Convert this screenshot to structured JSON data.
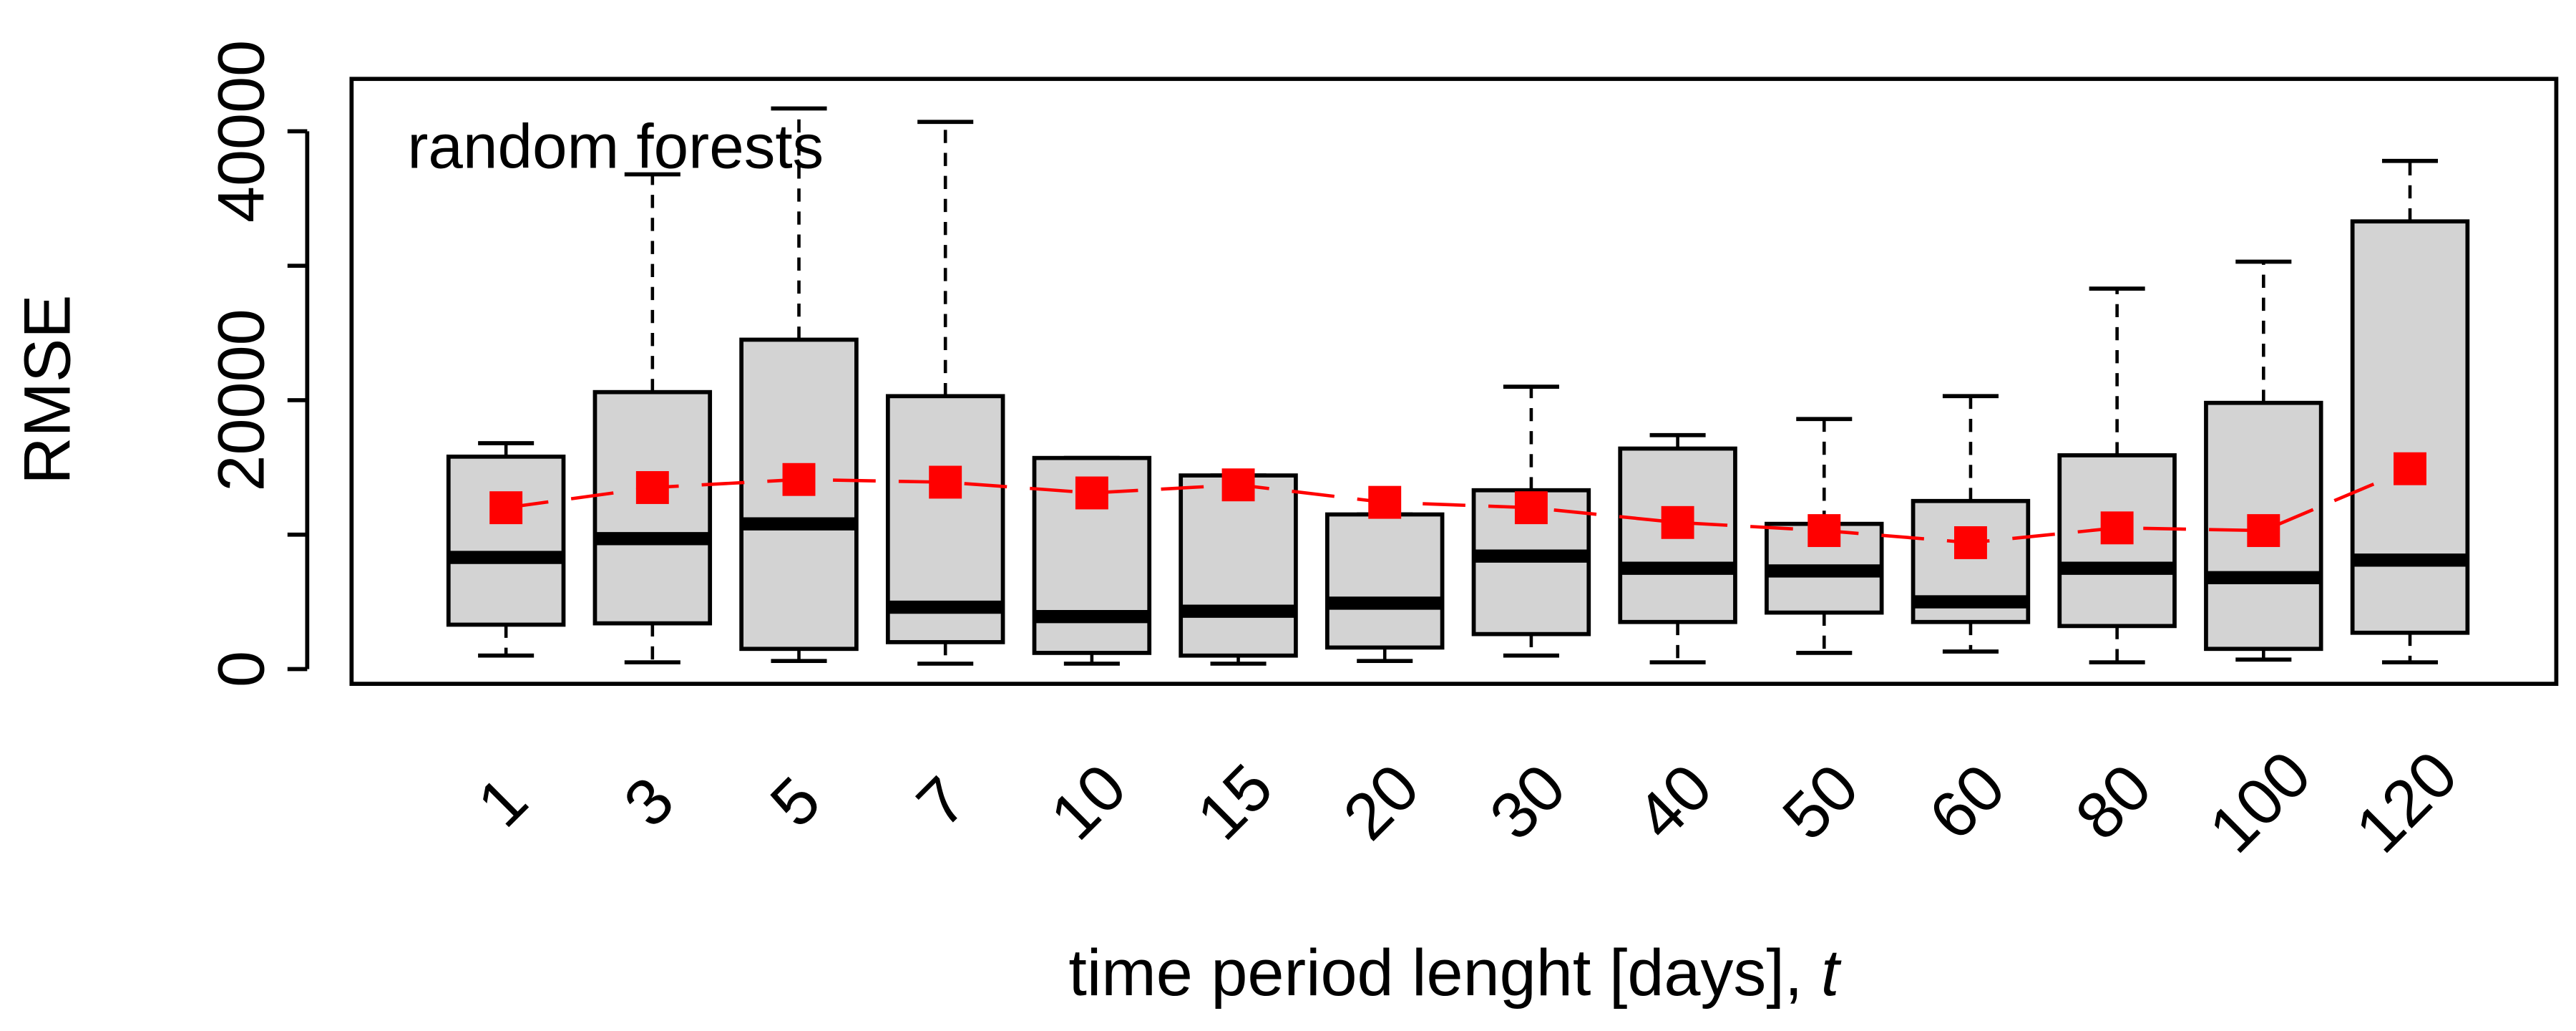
{
  "chart_data": {
    "type": "box",
    "title": "random forests",
    "ylabel": "RMSE",
    "xlabel": "time period lenght [days],",
    "xlabel_var": "t",
    "categories": [
      "1",
      "3",
      "5",
      "7",
      "10",
      "15",
      "20",
      "30",
      "40",
      "50",
      "60",
      "80",
      "100",
      "120"
    ],
    "whisker_low": [
      1000,
      500,
      600,
      400,
      400,
      400,
      600,
      1000,
      500,
      1200,
      1300,
      500,
      700,
      500
    ],
    "q1": [
      3300,
      3400,
      1500,
      2000,
      1200,
      1000,
      1600,
      2600,
      3500,
      4200,
      3500,
      3200,
      1500,
      2700
    ],
    "median": [
      8300,
      9700,
      10800,
      4600,
      3900,
      4300,
      4900,
      8400,
      7500,
      7300,
      5000,
      7500,
      6800,
      8100
    ],
    "q3": [
      15800,
      20600,
      24500,
      20300,
      15700,
      14400,
      11500,
      13300,
      16400,
      10800,
      12500,
      15900,
      19800,
      33300
    ],
    "whisker_high": [
      16800,
      36800,
      41700,
      40700,
      15700,
      14400,
      11500,
      21000,
      17400,
      18600,
      20300,
      28300,
      30300,
      37800
    ],
    "means": [
      12000,
      13500,
      14100,
      13900,
      13100,
      13700,
      12400,
      12000,
      10900,
      10300,
      9400,
      10500,
      10300,
      14900
    ],
    "box_color": "#d3d3d3",
    "mean_color": "#ff0000",
    "ylim": [
      -1100,
      43900
    ],
    "yticks": [
      0,
      {
        "value": 10000,
        "label": null
      },
      20000,
      {
        "value": 30000,
        "label": null
      },
      40000
    ]
  }
}
